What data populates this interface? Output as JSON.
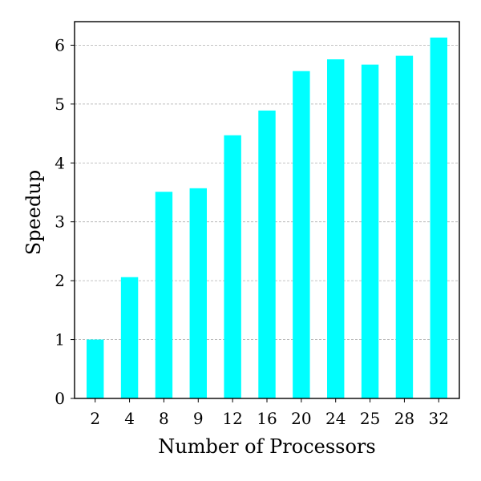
{
  "chart_data": {
    "type": "bar",
    "title": "",
    "xlabel": "Number of Processors",
    "ylabel": "Speedup",
    "categories": [
      "2",
      "4",
      "8",
      "9",
      "12",
      "16",
      "20",
      "24",
      "25",
      "28",
      "32"
    ],
    "values": [
      1.0,
      2.06,
      3.51,
      3.57,
      4.47,
      4.89,
      5.56,
      5.76,
      5.67,
      5.82,
      6.13
    ],
    "ylim": [
      0,
      6.4
    ],
    "yticks": [
      0,
      1,
      2,
      3,
      4,
      5,
      6
    ],
    "bar_color": "#00ffff",
    "grid": "horizontal dashed",
    "legend": "none"
  }
}
